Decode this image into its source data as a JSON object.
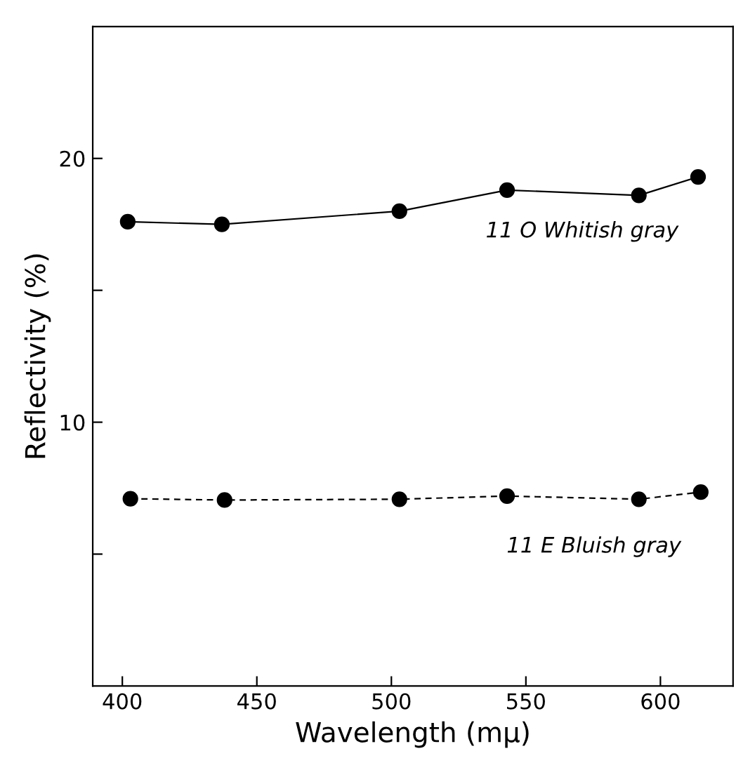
{
  "chart_data": {
    "type": "line",
    "xlabel": "Wavelength (mμ)",
    "ylabel": "Reflectivity (%)",
    "xlim": [
      389,
      627
    ],
    "xticks": [
      400,
      450,
      500,
      550,
      600
    ],
    "ylim": [
      0,
      25
    ],
    "yticks": [
      {
        "value": 5,
        "label": null
      },
      10,
      {
        "value": 15,
        "label": null
      },
      20
    ],
    "marker": "circle",
    "grid": false,
    "legend": false,
    "series": [
      {
        "name": "11 O Whitish gray",
        "color": "#000000",
        "line_style": "solid",
        "x": [
          402,
          437,
          503,
          543,
          592,
          614
        ],
        "values": [
          17.6,
          17.5,
          18.0,
          18.8,
          18.6,
          19.3
        ]
      },
      {
        "name": "11 E Bluish gray",
        "color": "#000000",
        "line_style": "dashed",
        "x": [
          403,
          438,
          503,
          543,
          592,
          615
        ],
        "values": [
          7.1,
          7.05,
          7.08,
          7.2,
          7.08,
          7.35
        ]
      }
    ]
  }
}
